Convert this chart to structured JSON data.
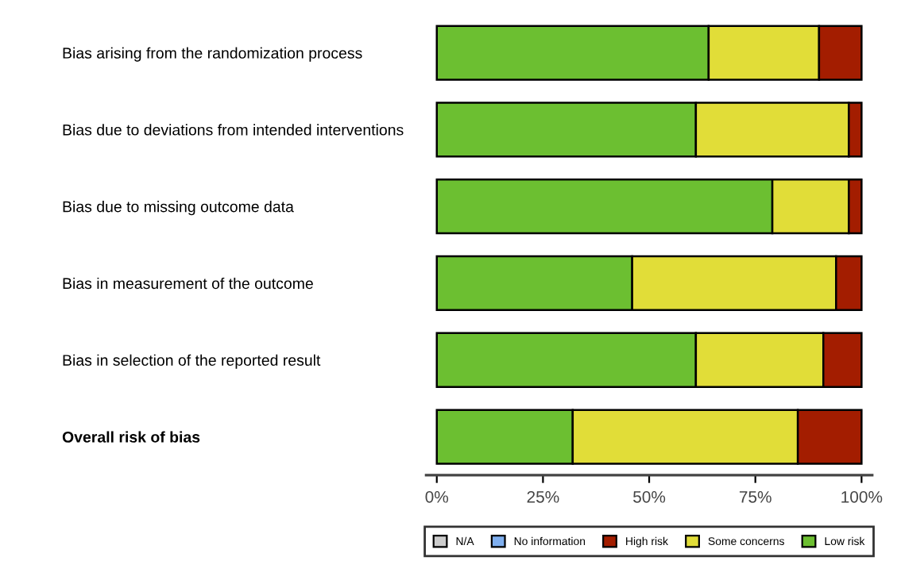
{
  "chart_data": {
    "type": "bar",
    "orientation": "horizontal",
    "stacked": true,
    "categories": [
      "Bias arising from the randomization process",
      "Bias due to deviations from intended interventions",
      "Bias due to missing outcome data",
      "Bias in measurement of the outcome",
      "Bias in selection of the reported result",
      "Overall risk of bias"
    ],
    "series": [
      {
        "name": "Low risk",
        "color": "#6cbf31",
        "values": [
          64,
          61,
          79,
          46,
          61,
          32
        ]
      },
      {
        "name": "Some concerns",
        "color": "#e1dd38",
        "values": [
          26,
          36,
          18,
          48,
          30,
          53
        ]
      },
      {
        "name": "High risk",
        "color": "#a31d00",
        "values": [
          10,
          3,
          3,
          6,
          9,
          15
        ]
      },
      {
        "name": "No information",
        "color": "#7fafef",
        "values": [
          0,
          0,
          0,
          0,
          0,
          0
        ]
      },
      {
        "name": "N/A",
        "color": "#cccccc",
        "values": [
          0,
          0,
          0,
          0,
          0,
          0
        ]
      }
    ],
    "xlim": [
      -2.5,
      102.5
    ],
    "xticks": [
      {
        "value": 0,
        "label": "0%"
      },
      {
        "value": 25,
        "label": "25%"
      },
      {
        "value": 50,
        "label": "50%"
      },
      {
        "value": 75,
        "label": "75%"
      },
      {
        "value": 100,
        "label": "100%"
      }
    ],
    "legend": "bottom"
  }
}
